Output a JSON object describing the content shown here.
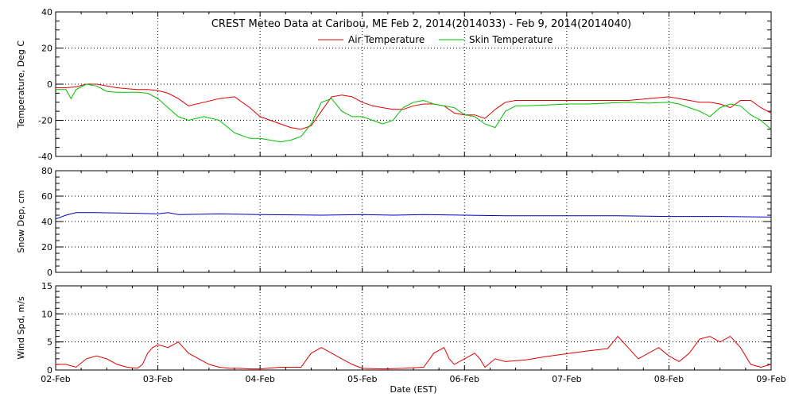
{
  "chart_data": [
    {
      "type": "line",
      "title": "CREST Meteo Data at Caribou, ME   Feb  2, 2014(2014033) - Feb  9, 2014(2014040)",
      "ylabel": "Temperature, Deg C",
      "xlim": [
        "02-Feb",
        "09-Feb"
      ],
      "ylim": [
        -40,
        40
      ],
      "yticks": [
        -40,
        -20,
        0,
        20,
        40
      ],
      "grid": true,
      "legend": "top-center",
      "series": [
        {
          "name": "Air Temperature",
          "color": "#e00000",
          "x": [
            0,
            0.1,
            0.2,
            0.3,
            0.4,
            0.5,
            0.6,
            0.7,
            0.8,
            0.9,
            1.0,
            1.1,
            1.2,
            1.3,
            1.45,
            1.6,
            1.75,
            1.9,
            2.0,
            2.1,
            2.2,
            2.3,
            2.4,
            2.5,
            2.6,
            2.7,
            2.8,
            2.9,
            3.0,
            3.1,
            3.2,
            3.3,
            3.4,
            3.5,
            3.6,
            3.7,
            3.8,
            3.9,
            4.0,
            4.1,
            4.2,
            4.3,
            4.4,
            4.5,
            4.6,
            4.7,
            4.8,
            5.0,
            5.2,
            5.4,
            5.6,
            5.8,
            6.0,
            6.1,
            6.2,
            6.3,
            6.4,
            6.5,
            6.6,
            6.7,
            6.8,
            6.9,
            7.0
          ],
          "y": [
            -2,
            -2,
            -1.5,
            0,
            0,
            -1,
            -2,
            -2.5,
            -3,
            -3,
            -3.5,
            -5,
            -8,
            -12,
            -10,
            -8,
            -7,
            -13,
            -18,
            -20,
            -22,
            -24,
            -25,
            -23,
            -15,
            -7,
            -6,
            -7,
            -10,
            -12,
            -13,
            -14,
            -14,
            -12,
            -11,
            -11,
            -12,
            -16,
            -17,
            -17,
            -19,
            -14,
            -10,
            -9,
            -9,
            -9,
            -9,
            -9,
            -9,
            -9,
            -9,
            -8,
            -7,
            -8,
            -9,
            -10,
            -10,
            -11,
            -13,
            -9,
            -9,
            -13,
            -16
          ]
        },
        {
          "name": "Skin Temperature",
          "color": "#00c000",
          "x": [
            0,
            0.1,
            0.15,
            0.2,
            0.3,
            0.4,
            0.5,
            0.6,
            0.7,
            0.8,
            0.9,
            1.0,
            1.1,
            1.2,
            1.3,
            1.45,
            1.6,
            1.75,
            1.9,
            2.0,
            2.1,
            2.2,
            2.3,
            2.4,
            2.5,
            2.6,
            2.7,
            2.8,
            2.9,
            3.0,
            3.1,
            3.2,
            3.3,
            3.4,
            3.5,
            3.6,
            3.7,
            3.8,
            3.9,
            4.0,
            4.1,
            4.2,
            4.3,
            4.4,
            4.5,
            4.6,
            4.8,
            5.0,
            5.2,
            5.4,
            5.6,
            5.8,
            6.0,
            6.1,
            6.2,
            6.3,
            6.4,
            6.5,
            6.6,
            6.7,
            6.8,
            6.9,
            7.0
          ],
          "y": [
            -3,
            -3,
            -8,
            -3,
            0,
            -1,
            -4,
            -4.5,
            -4.5,
            -4.5,
            -5,
            -8,
            -13,
            -18,
            -20,
            -18,
            -20,
            -27,
            -30,
            -30,
            -31,
            -32,
            -31,
            -29,
            -22,
            -10,
            -8,
            -15,
            -18,
            -18,
            -20,
            -22,
            -20,
            -13,
            -10,
            -9,
            -11,
            -12,
            -13,
            -17,
            -18,
            -22,
            -24,
            -15,
            -12,
            -12,
            -11.5,
            -11,
            -11,
            -10.5,
            -10,
            -10.5,
            -10,
            -11,
            -13,
            -15,
            -18,
            -13,
            -11,
            -12,
            -17,
            -20,
            -25
          ]
        }
      ]
    },
    {
      "type": "line",
      "ylabel": "Snow Dep, cm",
      "xlim": [
        "02-Feb",
        "09-Feb"
      ],
      "ylim": [
        0,
        80
      ],
      "yticks": [
        0,
        20,
        40,
        60,
        80
      ],
      "grid": true,
      "series": [
        {
          "color": "#0000c0",
          "x": [
            0,
            0.1,
            0.2,
            0.4,
            0.8,
            1.0,
            1.1,
            1.2,
            1.6,
            2.0,
            2.6,
            3.0,
            3.3,
            3.6,
            4.0,
            4.4,
            5.0,
            5.5,
            6.0,
            6.5,
            7.0
          ],
          "y": [
            42,
            45,
            47,
            47,
            46.5,
            46,
            47,
            45.5,
            46,
            45.5,
            45,
            45.5,
            45,
            45.5,
            45,
            44.5,
            44.5,
            44.5,
            44,
            44,
            43.5
          ]
        }
      ]
    },
    {
      "type": "line",
      "ylabel": "Wind Spd, m/s",
      "xlabel": "Date (EST)",
      "xlim": [
        "02-Feb",
        "09-Feb"
      ],
      "ylim": [
        0,
        15
      ],
      "yticks": [
        0,
        5,
        10,
        15
      ],
      "categories": [
        "02-Feb",
        "03-Feb",
        "04-Feb",
        "05-Feb",
        "06-Feb",
        "07-Feb",
        "08-Feb",
        "09-Feb"
      ],
      "grid": true,
      "series": [
        {
          "color": "#e00000",
          "x": [
            0,
            0.1,
            0.2,
            0.3,
            0.4,
            0.5,
            0.6,
            0.7,
            0.8,
            0.85,
            0.9,
            0.95,
            1.0,
            1.1,
            1.2,
            1.3,
            1.4,
            1.5,
            1.6,
            1.7,
            1.8,
            1.9,
            2.0,
            2.2,
            2.4,
            2.5,
            2.6,
            2.7,
            2.8,
            2.9,
            3.0,
            3.2,
            3.4,
            3.6,
            3.7,
            3.8,
            3.85,
            3.9,
            4.0,
            4.1,
            4.15,
            4.2,
            4.3,
            4.4,
            4.6,
            4.8,
            5.0,
            5.2,
            5.4,
            5.5,
            5.6,
            5.7,
            5.8,
            5.9,
            6.0,
            6.1,
            6.2,
            6.3,
            6.4,
            6.5,
            6.6,
            6.7,
            6.8,
            6.9,
            7.0
          ],
          "y": [
            1,
            1,
            0.5,
            2,
            2.5,
            2,
            1,
            0.5,
            0.3,
            1,
            3,
            4,
            4.5,
            4,
            5,
            3,
            2,
            1,
            0.5,
            0.3,
            0.3,
            0.2,
            0.2,
            0.5,
            0.5,
            3,
            4,
            3,
            2,
            1,
            0.3,
            0.2,
            0.3,
            0.5,
            3,
            4,
            2,
            1,
            2,
            3,
            2,
            0.5,
            2,
            1.5,
            1.8,
            2.4,
            2.9,
            3.4,
            3.8,
            6,
            4,
            2,
            3,
            4,
            2.5,
            1.5,
            3,
            5.5,
            6,
            5,
            6,
            4,
            1,
            0.5,
            1
          ]
        }
      ]
    }
  ]
}
